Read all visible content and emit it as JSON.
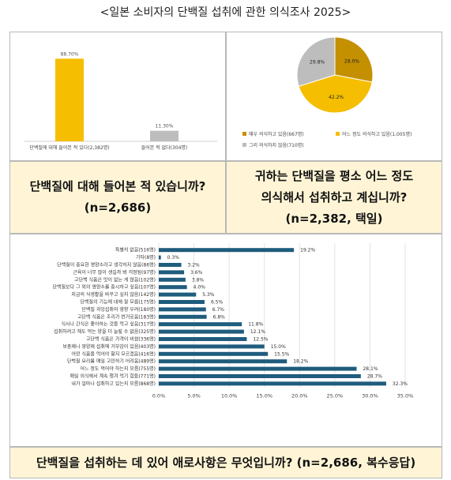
{
  "page": {
    "title": "<일본 소비자의 단백질 섭취에 관한 의식조사 2025>"
  },
  "panel1": {
    "question": "단백질에 대해 들어본 적 있습니까?",
    "sample": "(n=2,686)"
  },
  "panel2": {
    "question_line1": "귀하는 단백질을 평소 어느 정도",
    "question_line2": "의식해서 섭취하고 계십니까?",
    "sample": "(n=2,382, 택일)"
  },
  "panel3": {
    "question": "단백질을 섭취하는 데 있어 애로사항은 무엇입니까? (n=2,686, 복수응답)"
  },
  "colors": {
    "yellow": "#f5be00",
    "gray": "#bdbdbd",
    "blue": "#1f5c7d",
    "caption_bg": "#fff5d6"
  },
  "chart_data": [
    {
      "type": "bar",
      "categories": [
        "단백질에 대해 들어본 적 있다(2,382명)",
        "들어본 적 없다(304명)"
      ],
      "values": [
        88.7,
        11.3
      ],
      "value_labels": [
        "88.70%",
        "11.30%"
      ],
      "colors": [
        "#f5be00",
        "#bdbdbd"
      ],
      "ylim": [
        0,
        100
      ],
      "grid": false
    },
    {
      "type": "pie",
      "labels": [
        "매우 의식하고 있음(667명)",
        "어느 정도 의식하고 있음(1,005명)",
        "그리 의식하지 않음(710명)"
      ],
      "values": [
        28.0,
        42.2,
        29.8
      ],
      "value_labels": [
        "28.0%",
        "42.2%",
        "29.8%"
      ],
      "colors": [
        "#c49000",
        "#f5be00",
        "#bdbdbd"
      ],
      "legend": "bottom"
    },
    {
      "type": "bar",
      "orientation": "horizontal",
      "categories": [
        "특별히 없음(516명)",
        "기타(8명)",
        "단백질이 중요한 영양소라고 생각하지 않음(86명)",
        "근육이 너무 많이 생길까 봐 걱정됨(97명)",
        "고단백 식품은 맛이 없는 게 많음(102명)",
        "단백질보다 그 외의 영양소를 중시하고 싶음(107명)",
        "지금의 식생활을 바꾸고 싶지 않음(142명)",
        "단백질의 기능에 대해 잘 모름(175명)",
        "단백질 과잉섭취의 영향 우려(180명)",
        "고단백 식품은 조리가 번거로움(183명)",
        "식사나 간식은 좋아하는 것을 먹고 싶음(317명)",
        "섭취하려고 해도 먹는 양을 더 늘릴 수 없음(325명)",
        "고단백 식품은 가격이 비쌈(336명)",
        "보충제나 영양제 섭취에 거부감이 있음(403명)",
        "어떤 식품을 먹어야 할지 모르겠음(416명)",
        "단백질 요리를 매일 고민하기 어려움(489명)",
        "어느 정도 먹어야 하는지 모름(755명)",
        "매일 의식해서 계속 챙겨 먹기 힘듦(771명)",
        "내가 얼마나 섭취하고 있는지 모름(868명)"
      ],
      "values": [
        19.2,
        0.3,
        3.2,
        3.6,
        3.8,
        4.0,
        5.3,
        6.5,
        6.7,
        6.8,
        11.8,
        12.1,
        12.5,
        15.0,
        15.5,
        18.2,
        28.1,
        28.7,
        32.3
      ],
      "value_labels": [
        "19.2%",
        "0.3%",
        "3.2%",
        "3.6%",
        "3.8%",
        "4.0%",
        "5.3%",
        "6.5%",
        "6.7%",
        "6.8%",
        "11.8%",
        "12.1%",
        "12.5%",
        "15.0%",
        "15.5%",
        "18.2%",
        "28.1%",
        "28.7%",
        "32.3%"
      ],
      "xlim": [
        0,
        35
      ],
      "xticks": [
        "0.0%",
        "5.0%",
        "10.0%",
        "15.0%",
        "20.0%",
        "25.0%",
        "30.0%",
        "35.0%"
      ],
      "color": "#1f5c7d",
      "grid": true
    }
  ]
}
